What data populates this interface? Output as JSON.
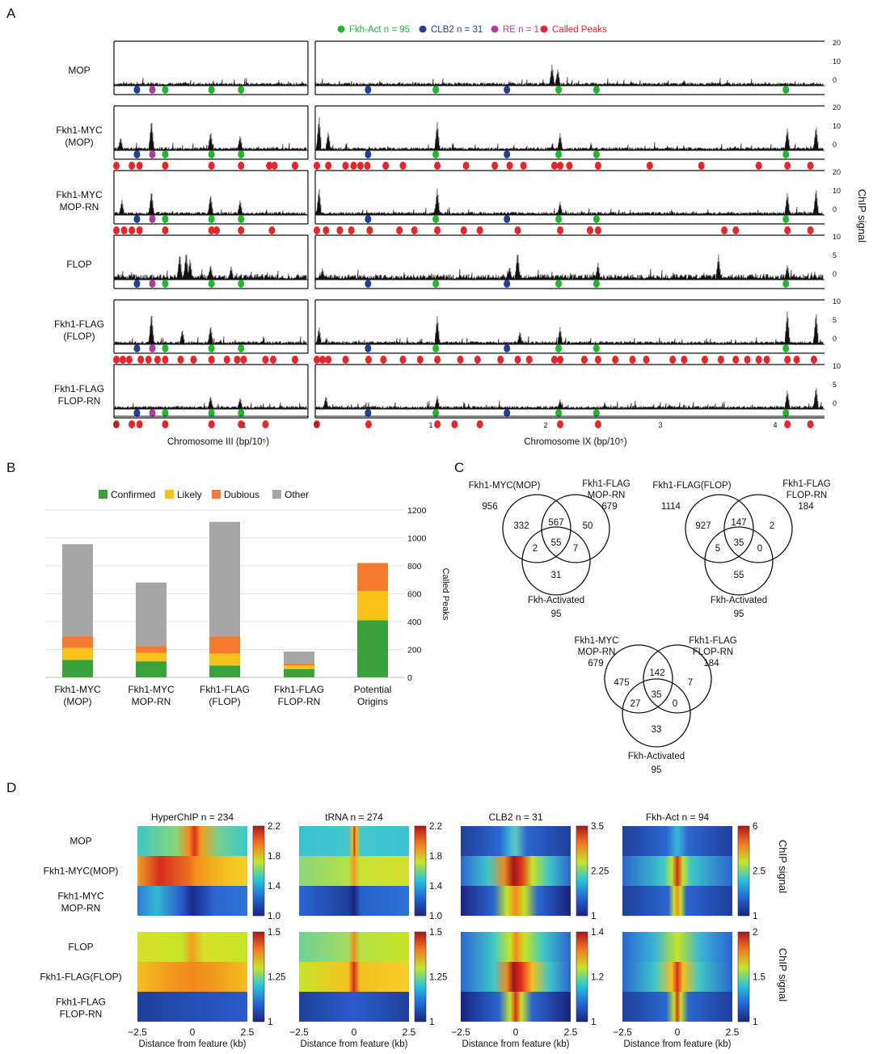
{
  "panel_labels": {
    "a": "A",
    "b": "B",
    "c": "C",
    "d": "D"
  },
  "colors": {
    "fkh_act": "#1fb82a",
    "clb2": "#1f3f99",
    "re": "#b03aa2",
    "peaks": "#e8262a",
    "confirmed": "#3aa23a",
    "likely": "#f7c21a",
    "dubious": "#f47a30",
    "other": "#a6a6a6"
  },
  "panel_a": {
    "legend": [
      "Fkh-Act n = 95",
      "CLB2 n = 31",
      "RE n = 1",
      "Called Peaks"
    ],
    "y_axis_label": "ChIP signal",
    "x_axes": [
      {
        "label": "Chromosome III (bp/10⁵)",
        "ticks": [
          "0",
          "1"
        ]
      },
      {
        "label": "Chromosome IX (bp/10⁵)",
        "ticks": [
          "0",
          "1",
          "2",
          "3",
          "4"
        ]
      }
    ],
    "tracks": [
      {
        "label": "MOP",
        "label2": "",
        "max": 20,
        "ticks": [
          "20",
          "10",
          "0"
        ],
        "peaks": false
      },
      {
        "label": "Fkh1-MYC",
        "label2": "(MOP)",
        "max": 20,
        "ticks": [
          "20",
          "10",
          "0"
        ],
        "peaks": true
      },
      {
        "label": "Fkh1-MYC",
        "label2": "MOP-RN",
        "max": 20,
        "ticks": [
          "20",
          "10",
          "0"
        ],
        "peaks": true
      },
      {
        "label": "FLOP",
        "label2": "",
        "max": 10,
        "ticks": [
          "10",
          "5",
          "0"
        ],
        "peaks": false
      },
      {
        "label": "Fkh1-FLAG",
        "label2": "(FLOP)",
        "max": 10,
        "ticks": [
          "10",
          "5",
          "0"
        ],
        "peaks": true
      },
      {
        "label": "Fkh1-FLAG",
        "label2": "FLOP-RN",
        "max": 10,
        "ticks": [
          "10",
          "5",
          "0"
        ],
        "peaks": true
      }
    ]
  },
  "chart_data": {
    "type": "bar",
    "stacked": true,
    "title": "",
    "xlabel": "",
    "ylabel": "Called Peaks",
    "ylim": [
      0,
      1200
    ],
    "yticks": [
      "1200",
      "1000",
      "800",
      "600",
      "400",
      "200",
      "0"
    ],
    "categories": [
      "Fkh1-MYC|(MOP)",
      "Fkh1-MYC|MOP-RN",
      "Fkh1-FLAG|(FLOP)",
      "Fkh1-FLAG|FLOP-RN",
      "Potential|Origins"
    ],
    "series": [
      {
        "name": "Confirmed",
        "values": [
          125,
          115,
          85,
          60,
          410
        ]
      },
      {
        "name": "Likely",
        "values": [
          85,
          60,
          85,
          25,
          210
        ]
      },
      {
        "name": "Dubious",
        "values": [
          85,
          50,
          125,
          15,
          200
        ]
      },
      {
        "name": "Other",
        "values": [
          660,
          455,
          820,
          85,
          0
        ]
      }
    ]
  },
  "panel_c": {
    "venns": [
      {
        "a_name": "Fkh1-MYC(MOP)",
        "a_total": "956",
        "b_name1": "Fkh1-FLAG",
        "b_name2": "MOP-RN",
        "b_total": "679",
        "c_name": "Fkh-Activated",
        "c_total": "95",
        "regions": {
          "a_only": "332",
          "ab": "567",
          "b_only": "50",
          "ac": "2",
          "abc": "55",
          "bc": "7",
          "c_only": "31"
        }
      },
      {
        "a_name": "Fkh1-FLAG(FLOP)",
        "a_total": "1114",
        "b_name1": "Fkh1-FLAG",
        "b_name2": "FLOP-RN",
        "b_total": "184",
        "c_name": "Fkh-Activated",
        "c_total": "95",
        "regions": {
          "a_only": "927",
          "ab": "147",
          "b_only": "2",
          "ac": "5",
          "abc": "35",
          "bc": "0",
          "c_only": "55"
        }
      },
      {
        "a_name1": "Fkh1-MYC",
        "a_name2": "MOP-RN",
        "a_total": "679",
        "b_name1": "Fkh1-FLAG",
        "b_name2": "FLOP-RN",
        "b_total": "184",
        "c_name": "Fkh-Activated",
        "c_total": "95",
        "regions": {
          "a_only": "475",
          "ab": "142",
          "b_only": "7",
          "ac": "27",
          "abc": "35",
          "bc": "0",
          "c_only": "33"
        }
      }
    ]
  },
  "panel_d": {
    "columns": [
      "HyperChIP n = 234",
      "tRNA n = 274",
      "CLB2 n = 31",
      "Fkh-Act n = 94"
    ],
    "row_labels_top": [
      [
        "MOP"
      ],
      [
        "Fkh1-MYC(MOP)"
      ],
      [
        "Fkh1-MYC",
        "MOP-RN"
      ]
    ],
    "row_labels_bottom": [
      [
        "FLOP"
      ],
      [
        "Fkh1-FLAG(FLOP)"
      ],
      [
        "Fkh1-FLAG",
        "FLOP-RN"
      ]
    ],
    "x_ticks": [
      "−2.5",
      "0",
      "2.5"
    ],
    "x_label": "Distance from feature (kb)",
    "side_label": "ChIP signal",
    "colorbars_top": [
      [
        "2.2",
        "1.8",
        "1.4",
        "1.0"
      ],
      [
        "2.2",
        "1.8",
        "1.4",
        "1.0"
      ],
      [
        "3.5",
        "2.25",
        "1"
      ],
      [
        "6",
        "2.5",
        "1"
      ]
    ],
    "colorbars_bottom": [
      [
        "1.5",
        "1.25",
        "1"
      ],
      [
        "1.5",
        "1.25",
        "1"
      ],
      [
        "1.4",
        "1.2",
        "1"
      ],
      [
        "2",
        "1.5",
        "1"
      ]
    ]
  }
}
